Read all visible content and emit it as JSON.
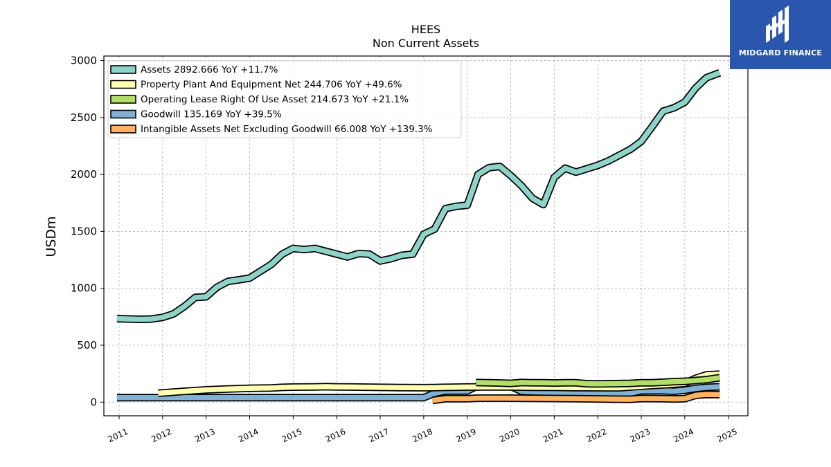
{
  "chart_data": {
    "type": "line",
    "title": "HEES",
    "subtitle": "Non Current  Assets",
    "ylabel": "USDm",
    "xlabel": "",
    "ylim": [
      -120,
      3040
    ],
    "xlim": [
      2010.65,
      2025.45
    ],
    "yticks": [
      0,
      500,
      1000,
      1500,
      2000,
      2500,
      3000
    ],
    "xticks": [
      "2011",
      "2012",
      "2013",
      "2014",
      "2015",
      "2016",
      "2017",
      "2018",
      "2019",
      "2020",
      "2021",
      "2022",
      "2023",
      "2024",
      "2025"
    ],
    "grid": true,
    "legend_position": "top-left",
    "series": [
      {
        "name": "Assets",
        "legend": "Assets  2892.666 YoY +11.7%",
        "color": "#8dd3c7",
        "points": [
          [
            2010.95,
            733
          ],
          [
            2011.25,
            730
          ],
          [
            2011.5,
            728
          ],
          [
            2011.75,
            730
          ],
          [
            2012.0,
            745
          ],
          [
            2012.25,
            775
          ],
          [
            2012.5,
            840
          ],
          [
            2012.75,
            920
          ],
          [
            2013.0,
            925
          ],
          [
            2013.25,
            1010
          ],
          [
            2013.5,
            1060
          ],
          [
            2013.75,
            1075
          ],
          [
            2014.0,
            1090
          ],
          [
            2014.25,
            1150
          ],
          [
            2014.5,
            1210
          ],
          [
            2014.75,
            1300
          ],
          [
            2015.0,
            1350
          ],
          [
            2015.25,
            1340
          ],
          [
            2015.5,
            1350
          ],
          [
            2015.75,
            1325
          ],
          [
            2016.0,
            1300
          ],
          [
            2016.25,
            1275
          ],
          [
            2016.5,
            1305
          ],
          [
            2016.75,
            1300
          ],
          [
            2017.0,
            1240
          ],
          [
            2017.25,
            1260
          ],
          [
            2017.5,
            1290
          ],
          [
            2017.75,
            1300
          ],
          [
            2018.0,
            1475
          ],
          [
            2018.25,
            1520
          ],
          [
            2018.5,
            1700
          ],
          [
            2018.75,
            1720
          ],
          [
            2019.0,
            1730
          ],
          [
            2019.25,
            2000
          ],
          [
            2019.5,
            2060
          ],
          [
            2019.75,
            2070
          ],
          [
            2020.0,
            1990
          ],
          [
            2020.25,
            1900
          ],
          [
            2020.5,
            1790
          ],
          [
            2020.75,
            1735
          ],
          [
            2021.0,
            1975
          ],
          [
            2021.25,
            2055
          ],
          [
            2021.5,
            2020
          ],
          [
            2021.75,
            2050
          ],
          [
            2022.0,
            2080
          ],
          [
            2022.25,
            2120
          ],
          [
            2022.5,
            2170
          ],
          [
            2022.75,
            2220
          ],
          [
            2023.0,
            2290
          ],
          [
            2023.25,
            2420
          ],
          [
            2023.5,
            2555
          ],
          [
            2023.75,
            2585
          ],
          [
            2024.0,
            2635
          ],
          [
            2024.25,
            2760
          ],
          [
            2024.5,
            2850
          ],
          [
            2024.8,
            2893
          ]
        ]
      },
      {
        "name": "Property Plant And Equipment Net",
        "legend": "Property Plant And Equipment Net  244.706 YoY +49.6%",
        "color": "#ffffb3",
        "points": [
          [
            2011.9,
            78
          ],
          [
            2012.5,
            95
          ],
          [
            2013.0,
            108
          ],
          [
            2013.5,
            115
          ],
          [
            2014.0,
            122
          ],
          [
            2014.5,
            124
          ],
          [
            2014.75,
            130
          ],
          [
            2015.0,
            132
          ],
          [
            2015.5,
            134
          ],
          [
            2015.75,
            136
          ],
          [
            2016.0,
            134
          ],
          [
            2016.5,
            132
          ],
          [
            2017.0,
            130
          ],
          [
            2017.5,
            128
          ],
          [
            2018.0,
            127
          ],
          [
            2018.25,
            128
          ],
          [
            2018.5,
            130
          ],
          [
            2019.0,
            133
          ],
          [
            2019.5,
            134
          ],
          [
            2020.0,
            134
          ],
          [
            2020.5,
            131
          ],
          [
            2021.0,
            130
          ],
          [
            2021.5,
            128
          ],
          [
            2022.0,
            127
          ],
          [
            2022.5,
            126
          ],
          [
            2023.0,
            140
          ],
          [
            2023.5,
            152
          ],
          [
            2024.0,
            165
          ],
          [
            2024.25,
            210
          ],
          [
            2024.5,
            240
          ],
          [
            2024.8,
            245
          ]
        ]
      },
      {
        "name": "Operating Lease Right Of Use Asset",
        "legend": "Operating Lease Right Of Use Asset  214.673 YoY +21.1%",
        "color": "#b3de69",
        "points": [
          [
            2019.2,
            172
          ],
          [
            2019.5,
            170
          ],
          [
            2019.75,
            168
          ],
          [
            2020.0,
            165
          ],
          [
            2020.25,
            172
          ],
          [
            2020.5,
            170
          ],
          [
            2020.75,
            170
          ],
          [
            2021.0,
            168
          ],
          [
            2021.25,
            170
          ],
          [
            2021.5,
            170
          ],
          [
            2021.75,
            162
          ],
          [
            2022.0,
            160
          ],
          [
            2022.25,
            162
          ],
          [
            2022.5,
            163
          ],
          [
            2022.75,
            165
          ],
          [
            2023.0,
            170
          ],
          [
            2023.25,
            170
          ],
          [
            2023.5,
            175
          ],
          [
            2023.75,
            180
          ],
          [
            2024.0,
            183
          ],
          [
            2024.25,
            190
          ],
          [
            2024.5,
            198
          ],
          [
            2024.8,
            215
          ]
        ]
      },
      {
        "name": "Goodwill",
        "legend": "Goodwill  135.169 YoY +39.5%",
        "color": "#80b1d3",
        "points": [
          [
            2010.95,
            40
          ],
          [
            2011.5,
            40
          ],
          [
            2012.0,
            40
          ],
          [
            2012.5,
            40
          ],
          [
            2013.0,
            40
          ],
          [
            2013.5,
            40
          ],
          [
            2014.0,
            40
          ],
          [
            2014.5,
            40
          ],
          [
            2015.0,
            40
          ],
          [
            2015.5,
            40
          ],
          [
            2016.0,
            40
          ],
          [
            2016.5,
            40
          ],
          [
            2017.0,
            40
          ],
          [
            2017.5,
            40
          ],
          [
            2018.0,
            40
          ],
          [
            2018.25,
            78
          ],
          [
            2018.5,
            98
          ],
          [
            2018.75,
            98
          ],
          [
            2019.0,
            98
          ],
          [
            2019.25,
            145
          ],
          [
            2019.5,
            145
          ],
          [
            2019.75,
            145
          ],
          [
            2020.0,
            138
          ],
          [
            2020.25,
            95
          ],
          [
            2020.5,
            90
          ],
          [
            2020.75,
            88
          ],
          [
            2021.0,
            85
          ],
          [
            2021.25,
            85
          ],
          [
            2021.5,
            85
          ],
          [
            2021.75,
            82
          ],
          [
            2022.0,
            82
          ],
          [
            2022.25,
            80
          ],
          [
            2022.5,
            80
          ],
          [
            2022.75,
            78
          ],
          [
            2023.0,
            100
          ],
          [
            2023.25,
            100
          ],
          [
            2023.5,
            100
          ],
          [
            2023.75,
            96
          ],
          [
            2024.0,
            105
          ],
          [
            2024.25,
            120
          ],
          [
            2024.5,
            130
          ],
          [
            2024.8,
            135
          ]
        ]
      },
      {
        "name": "Intangible Assets Net Excluding Goodwill",
        "legend": "Intangible Assets Net Excluding Goodwill  66.008 YoY +139.3%",
        "color": "#fdb462",
        "points": [
          [
            2018.2,
            15
          ],
          [
            2018.5,
            30
          ],
          [
            2018.75,
            30
          ],
          [
            2019.0,
            30
          ],
          [
            2019.25,
            35
          ],
          [
            2019.5,
            35
          ],
          [
            2019.75,
            35
          ],
          [
            2020.0,
            35
          ],
          [
            2020.5,
            33
          ],
          [
            2021.0,
            32
          ],
          [
            2021.5,
            30
          ],
          [
            2022.0,
            28
          ],
          [
            2022.5,
            26
          ],
          [
            2022.75,
            25
          ],
          [
            2023.0,
            32
          ],
          [
            2023.5,
            30
          ],
          [
            2023.75,
            28
          ],
          [
            2024.0,
            30
          ],
          [
            2024.25,
            60
          ],
          [
            2024.5,
            68
          ],
          [
            2024.8,
            66
          ]
        ]
      }
    ]
  },
  "logo": {
    "text": "MIDGARD FINANCE"
  }
}
